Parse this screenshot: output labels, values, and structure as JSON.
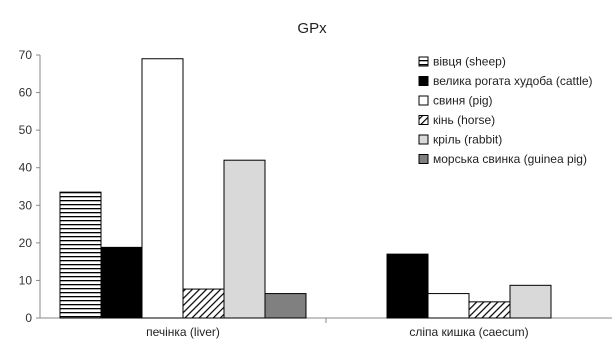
{
  "chart_data": {
    "type": "bar",
    "title": "GPx",
    "categories": [
      "печінка (liver)",
      "сліпа кишка (caecum)"
    ],
    "ylim": [
      0,
      70
    ],
    "yticks": [
      0,
      10,
      20,
      30,
      40,
      50,
      60,
      70
    ],
    "grid": false,
    "legend_position": "top-right",
    "series": [
      {
        "name": "вівця (sheep)",
        "values": [
          33.5,
          null
        ],
        "fill": "horizontal-stripes",
        "color": "#000000"
      },
      {
        "name": "велика рогата худоба (cattle)",
        "values": [
          18.8,
          17.0
        ],
        "fill": "solid",
        "color": "#000000"
      },
      {
        "name": "свиня (pig)",
        "values": [
          69.0,
          6.5
        ],
        "fill": "solid",
        "color": "#ffffff"
      },
      {
        "name": "кінь (horse)",
        "values": [
          7.7,
          4.3
        ],
        "fill": "diagonal-hatch",
        "color": "#000000"
      },
      {
        "name": "кріль (rabbit)",
        "values": [
          42.0,
          8.7
        ],
        "fill": "solid",
        "color": "#d9d9d9"
      },
      {
        "name": "морська свинка (guinea pig)",
        "values": [
          6.5,
          null
        ],
        "fill": "solid",
        "color": "#808080"
      }
    ]
  }
}
